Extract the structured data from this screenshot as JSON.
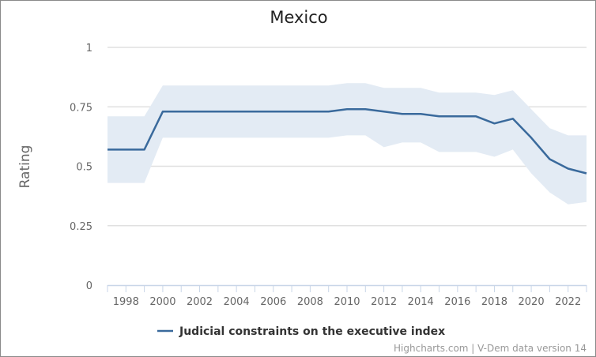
{
  "chart_data": {
    "type": "line",
    "title": "Mexico",
    "xlabel": "",
    "ylabel": "Rating",
    "xlim": [
      1997,
      2023
    ],
    "ylim": [
      0,
      1
    ],
    "yticks": [
      0,
      0.25,
      0.5,
      0.75,
      1
    ],
    "ytick_labels": [
      "0",
      "0.25",
      "0.5",
      "0.75",
      "1"
    ],
    "xticks": [
      1998,
      2000,
      2002,
      2004,
      2006,
      2008,
      2010,
      2012,
      2014,
      2016,
      2018,
      2020,
      2022
    ],
    "grid": true,
    "legend_position": "bottom-center",
    "series": [
      {
        "name": "Judicial constraints on the executive index",
        "color": "#3a6a9c",
        "band_color": "#e3ebf4",
        "x": [
          1997,
          1998,
          1999,
          2000,
          2001,
          2002,
          2003,
          2004,
          2005,
          2006,
          2007,
          2008,
          2009,
          2010,
          2011,
          2012,
          2013,
          2014,
          2015,
          2016,
          2017,
          2018,
          2019,
          2020,
          2021,
          2022,
          2023
        ],
        "values": [
          0.57,
          0.57,
          0.57,
          0.73,
          0.73,
          0.73,
          0.73,
          0.73,
          0.73,
          0.73,
          0.73,
          0.73,
          0.73,
          0.74,
          0.74,
          0.73,
          0.72,
          0.72,
          0.71,
          0.71,
          0.71,
          0.68,
          0.7,
          0.62,
          0.53,
          0.49,
          0.47
        ],
        "upper": [
          0.71,
          0.71,
          0.71,
          0.84,
          0.84,
          0.84,
          0.84,
          0.84,
          0.84,
          0.84,
          0.84,
          0.84,
          0.84,
          0.85,
          0.85,
          0.83,
          0.83,
          0.83,
          0.81,
          0.81,
          0.81,
          0.8,
          0.82,
          0.74,
          0.66,
          0.63,
          0.63
        ],
        "lower": [
          0.43,
          0.43,
          0.43,
          0.62,
          0.62,
          0.62,
          0.62,
          0.62,
          0.62,
          0.62,
          0.62,
          0.62,
          0.62,
          0.63,
          0.63,
          0.58,
          0.6,
          0.6,
          0.56,
          0.56,
          0.56,
          0.54,
          0.57,
          0.47,
          0.39,
          0.34,
          0.35
        ]
      }
    ],
    "credits": "Highcharts.com | V-Dem data version 14"
  }
}
